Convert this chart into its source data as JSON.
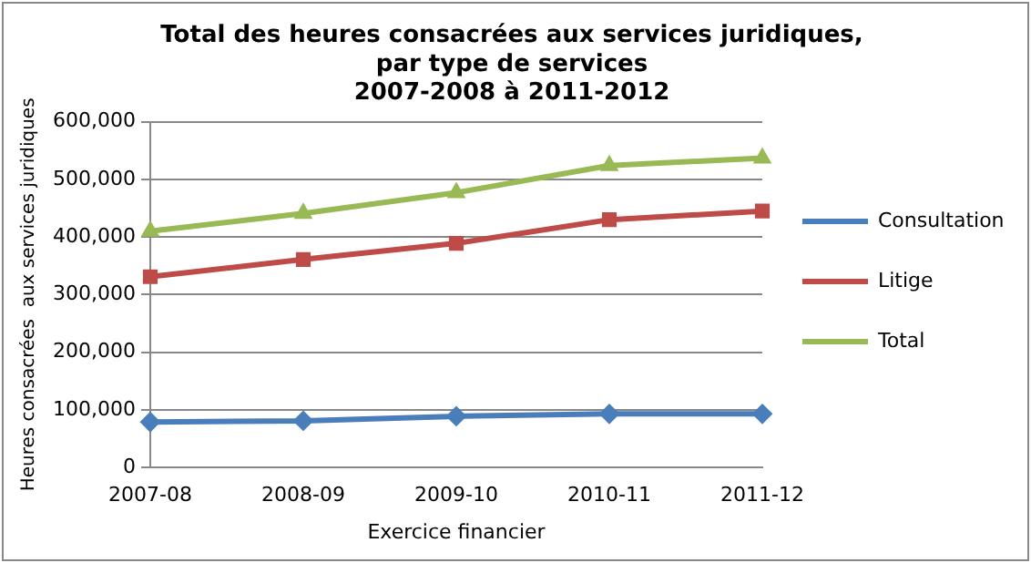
{
  "chart_data": {
    "type": "line",
    "title": [
      "Total des heures consacrées aux services juridiques,",
      "par type de services",
      "2007-2008 à 2011-2012"
    ],
    "xlabel": "Exercice financier",
    "ylabel": "Heures consacrées  aux services juridiques",
    "categories": [
      "2007-08",
      "2008-09",
      "2009-10",
      "2010-11",
      "2011-12"
    ],
    "series": [
      {
        "name": "Consultation",
        "color": "#4a7ebb",
        "marker": "diamond",
        "values": [
          79000,
          81000,
          89000,
          93000,
          93000
        ]
      },
      {
        "name": "Litige",
        "color": "#be4b48",
        "marker": "square",
        "values": [
          331000,
          361000,
          389000,
          430000,
          445000
        ]
      },
      {
        "name": "Total",
        "color": "#98b954",
        "marker": "triangle",
        "values": [
          410000,
          441000,
          477000,
          524000,
          537000
        ]
      }
    ],
    "ylim": [
      0,
      600000
    ],
    "yticks": [
      0,
      {
        "value": 100000,
        "label": "100,000"
      },
      {
        "value": 200000,
        "label": "200,000"
      },
      {
        "value": 300000,
        "label": "300,000"
      },
      {
        "value": 400000,
        "label": "400,000"
      },
      {
        "value": 500000,
        "label": "500,000"
      },
      {
        "value": 600000,
        "label": "600,000"
      }
    ],
    "grid": "y",
    "legend": "right"
  }
}
